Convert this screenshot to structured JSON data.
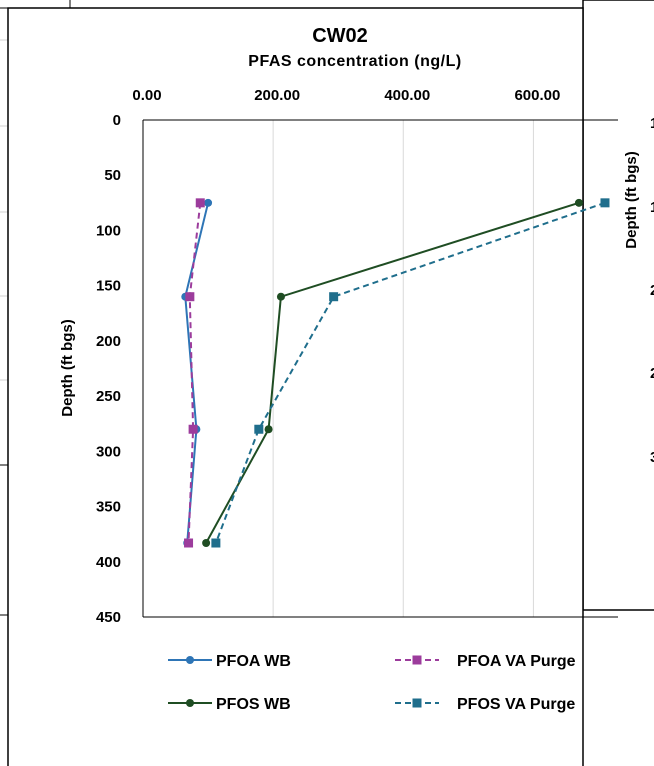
{
  "chart_data": {
    "type": "line",
    "title": "CW02",
    "subtitle": "PFAS concentration (ng/L)",
    "xlabel": "PFAS concentration (ng/L)",
    "ylabel": "Depth (ft bgs)",
    "x_axis_position": "top",
    "y_axis_inverted": true,
    "xlim": [
      0,
      730
    ],
    "ylim": [
      0,
      450
    ],
    "x_ticks": [
      "0.00",
      "200.00",
      "400.00",
      "600.00"
    ],
    "x_tick_values": [
      0,
      200,
      400,
      600
    ],
    "y_ticks": [
      "0",
      "50",
      "100",
      "150",
      "200",
      "250",
      "300",
      "350",
      "400",
      "450"
    ],
    "y_tick_values": [
      0,
      50,
      100,
      150,
      200,
      250,
      300,
      350,
      400,
      450
    ],
    "grid": "vertical",
    "legend_placement": "bottom",
    "series": [
      {
        "name": "PFOA WB",
        "color": "#2E75B6",
        "line": "solid",
        "marker": "circle",
        "points": [
          [
            100,
            75
          ],
          [
            65,
            160
          ],
          [
            82,
            280
          ],
          [
            68,
            383
          ]
        ]
      },
      {
        "name": "PFOA VA Purge",
        "color": "#9C3C9C",
        "line": "dashed",
        "marker": "square",
        "points": [
          [
            88,
            75
          ],
          [
            72,
            160
          ],
          [
            77,
            280
          ],
          [
            70,
            383
          ]
        ]
      },
      {
        "name": "PFOS WB",
        "color": "#1F4D23",
        "line": "solid",
        "marker": "circle",
        "points": [
          [
            670,
            75
          ],
          [
            212,
            160
          ],
          [
            193,
            280
          ],
          [
            97,
            383
          ]
        ]
      },
      {
        "name": "PFOS VA Purge",
        "color": "#1F6E8C",
        "line": "dashed",
        "marker": "square",
        "points": [
          [
            710,
            75
          ],
          [
            293,
            160
          ],
          [
            178,
            280
          ],
          [
            112,
            383
          ]
        ]
      }
    ]
  },
  "background_chart": {
    "ylabel": "Depth (ft bgs)",
    "tick_fragments": [
      "1",
      "1",
      "2",
      "2",
      "3"
    ]
  }
}
